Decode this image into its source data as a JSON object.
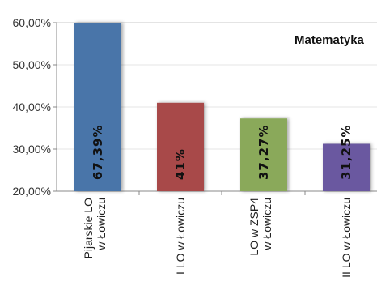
{
  "chart_data": {
    "type": "bar",
    "title": "Matematyka",
    "categories": [
      [
        "Pijarskie LO",
        "w Łowiczu"
      ],
      [
        "I LO w Łowiczu"
      ],
      [
        "LO w ZSP4",
        "w Łowiczu"
      ],
      [
        "II LO w Łowiczu"
      ]
    ],
    "values": [
      67.39,
      41,
      37.27,
      31.25
    ],
    "data_labels": [
      "67,39%",
      "41%",
      "37,27%",
      "31,25%"
    ],
    "colors": [
      "#4a74a9",
      "#a84a4a",
      "#8aa95a",
      "#6a58a0"
    ],
    "y_ticks": [
      20,
      30,
      40,
      50,
      60
    ],
    "y_tick_labels": [
      "20,00%",
      "30,00%",
      "40,00%",
      "50,00%",
      "60,00%"
    ],
    "ylim": [
      20,
      60
    ],
    "grid": true,
    "legend": "none"
  }
}
